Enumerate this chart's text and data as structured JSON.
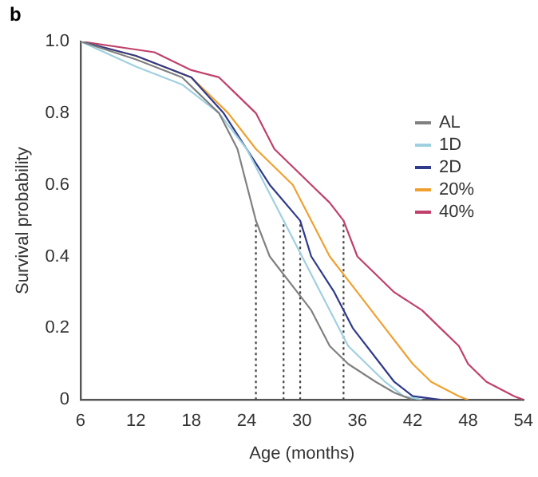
{
  "chart_data": {
    "type": "line",
    "xlabel": "Age (months)",
    "ylabel": "Survival probability",
    "annotations": [
      "b"
    ],
    "xlim": [
      6,
      54
    ],
    "xticks": [
      6,
      12,
      18,
      24,
      30,
      36,
      42,
      48,
      54
    ],
    "ylim": [
      0,
      1
    ],
    "yticks": [
      0,
      0.2,
      0.4,
      0.6,
      0.8,
      {
        "value": 1,
        "label": "1.0"
      }
    ],
    "grid": false,
    "legend": "top right",
    "marker": "none",
    "series": [
      {
        "name": "AL",
        "color": "#808080",
        "x": [
          6,
          12,
          17,
          19,
          21,
          23,
          24,
          25,
          26.5,
          28,
          29.5,
          31,
          33,
          35,
          38,
          40,
          42
        ],
        "values": [
          1,
          0.95,
          0.9,
          0.85,
          0.8,
          0.7,
          0.6,
          0.5,
          0.4,
          0.35,
          0.3,
          0.25,
          0.15,
          0.1,
          0.05,
          0.02,
          0
        ]
      },
      {
        "name": "1D",
        "color": "#9fd0e0",
        "x": [
          6,
          12,
          17,
          21,
          24,
          26,
          28,
          30,
          32,
          34,
          35,
          37,
          39,
          41,
          43
        ],
        "values": [
          1,
          0.93,
          0.88,
          0.8,
          0.7,
          0.6,
          0.5,
          0.4,
          0.3,
          0.2,
          0.15,
          0.1,
          0.05,
          0.01,
          0
        ]
      },
      {
        "name": "2D",
        "color": "#2f3a8a",
        "x": [
          6,
          12,
          18,
          21.5,
          24,
          26.5,
          29.8,
          31,
          33.5,
          35.5,
          38.5,
          40,
          42,
          45
        ],
        "values": [
          1,
          0.96,
          0.9,
          0.8,
          0.7,
          0.6,
          0.5,
          0.4,
          0.3,
          0.2,
          0.1,
          0.05,
          0.01,
          0
        ]
      },
      {
        "name": "20%",
        "color": "#f0a030",
        "x": [
          6,
          12,
          18,
          22,
          25,
          27,
          29,
          31,
          33,
          36,
          39,
          42,
          44,
          47,
          48
        ],
        "values": [
          1,
          0.96,
          0.9,
          0.8,
          0.7,
          0.65,
          0.6,
          0.5,
          0.4,
          0.3,
          0.2,
          0.1,
          0.05,
          0.01,
          0
        ]
      },
      {
        "name": "40%",
        "color": "#c0406a",
        "x": [
          6,
          14,
          18,
          21,
          23,
          25,
          27,
          29,
          31,
          33,
          34.5,
          36,
          38,
          40,
          43,
          45,
          47,
          48,
          50,
          53,
          54
        ],
        "values": [
          1,
          0.97,
          0.92,
          0.9,
          0.85,
          0.8,
          0.7,
          0.65,
          0.6,
          0.55,
          0.5,
          0.4,
          0.35,
          0.3,
          0.25,
          0.2,
          0.15,
          0.1,
          0.05,
          0.01,
          0
        ]
      },
      {
        "type": "line",
        "line_style": "dotted",
        "color": "#444444",
        "x": [
          25,
          25
        ],
        "values": [
          0,
          0.5
        ]
      },
      {
        "type": "line",
        "line_style": "dotted",
        "color": "#444444",
        "x": [
          28,
          28
        ],
        "values": [
          0,
          0.5
        ]
      },
      {
        "type": "line",
        "line_style": "dotted",
        "color": "#444444",
        "x": [
          29.8,
          29.8
        ],
        "values": [
          0,
          0.5
        ]
      },
      {
        "type": "line",
        "line_style": "dotted",
        "color": "#444444",
        "x": [
          34.5,
          34.5
        ],
        "values": [
          0,
          0.5
        ]
      }
    ]
  }
}
